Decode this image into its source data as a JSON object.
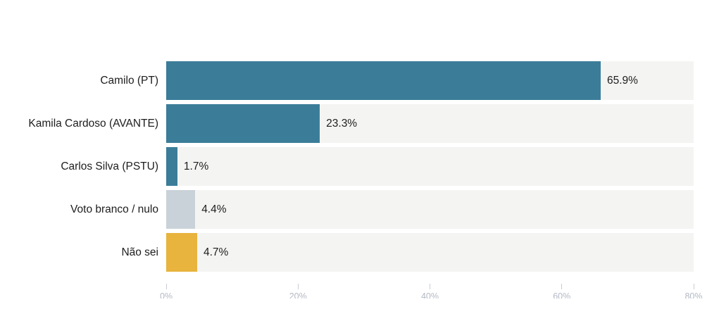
{
  "chart_data": {
    "type": "bar",
    "orientation": "horizontal",
    "title": "",
    "xlabel": "",
    "ylabel": "",
    "xlim": [
      0,
      80
    ],
    "grid": "off",
    "legend": "none",
    "categories": [
      "Camilo (PT)",
      "Kamila Cardoso (AVANTE)",
      "Carlos Silva (PSTU)",
      "Voto branco / nulo",
      "Não sei"
    ],
    "values": [
      65.9,
      23.3,
      1.7,
      4.4,
      4.7
    ],
    "value_labels": [
      "65.9%",
      "23.3%",
      "1.7%",
      "4.4%",
      "4.7%"
    ],
    "bar_colors": [
      "#3b7d99",
      "#3b7d99",
      "#3b7d99",
      "#c9d2d8",
      "#e8b43e"
    ],
    "x_tick_labels": [
      "0%",
      "20%",
      "40%",
      "60%",
      "80%"
    ],
    "x_tick_values": [
      0,
      20,
      40,
      60,
      80
    ],
    "colors": {
      "row_background": "#f4f4f3",
      "text": "#1d1d1d",
      "tick_text": "#b3b9c3",
      "tick_line": "#c9cdd5",
      "page_background": "#ffffff"
    }
  }
}
